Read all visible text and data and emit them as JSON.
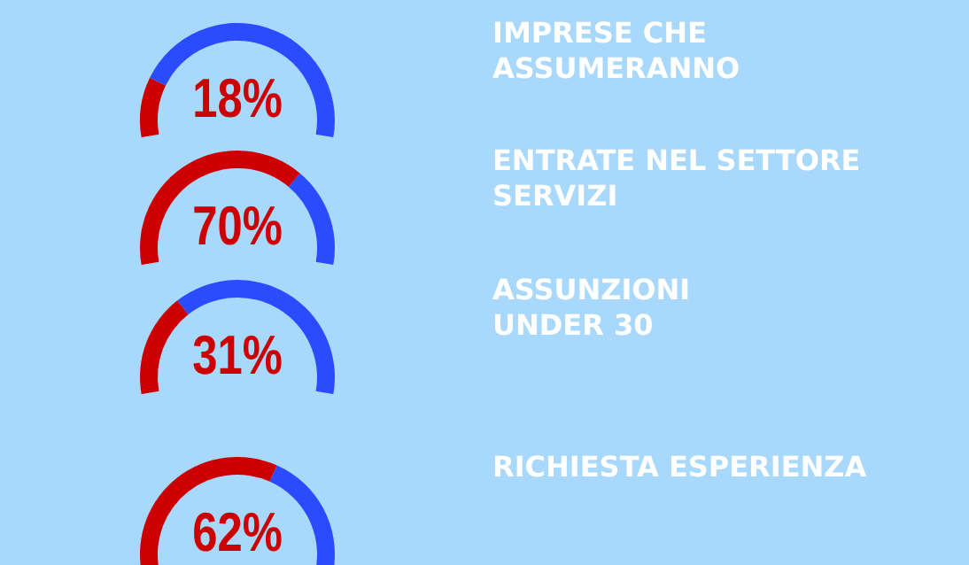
{
  "chart_data": [
    {
      "type": "donut",
      "title": "IMPRESE CHE\nASSUMERANNO",
      "categories": [
        null,
        null
      ],
      "values": [
        18,
        82
      ],
      "colors": [
        "#cc0000",
        "#2b4bff"
      ],
      "annotations": [
        "18%"
      ]
    },
    {
      "type": "donut",
      "title": "ENTRATE NEL SETTORE\nSERVIZI",
      "categories": [
        null,
        null
      ],
      "values": [
        70,
        30
      ],
      "colors": [
        "#cc0000",
        "#2b4bff"
      ],
      "annotations": [
        "70%"
      ]
    },
    {
      "type": "donut",
      "title": "ASSUNZIONI\nUNDER 30",
      "categories": [
        null,
        null
      ],
      "values": [
        31,
        69
      ],
      "colors": [
        "#cc0000",
        "#2b4bff"
      ],
      "annotations": [
        "31%"
      ]
    },
    {
      "type": "donut",
      "title": "RICHIESTA ESPERIENZA",
      "categories": [
        null,
        null
      ],
      "values": [
        62,
        38
      ],
      "colors": [
        "#cc0000",
        "#2b4bff"
      ],
      "annotations": [
        "62%"
      ]
    }
  ]
}
